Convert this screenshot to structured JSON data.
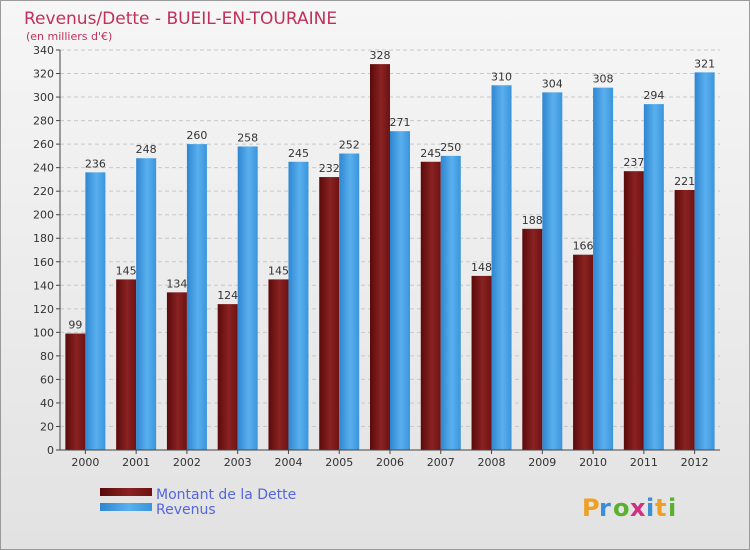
{
  "chart_data": {
    "type": "bar",
    "title": "Revenus/Dette - BUEIL-EN-TOURAINE",
    "subtitle": "(en milliers d'€)",
    "categories": [
      "2000",
      "2001",
      "2002",
      "2003",
      "2004",
      "2005",
      "2006",
      "2007",
      "2008",
      "2009",
      "2010",
      "2011",
      "2012"
    ],
    "series": [
      {
        "name": "Montant de la Dette",
        "color": "#7a1414",
        "values": [
          99,
          145,
          134,
          124,
          145,
          232,
          328,
          245,
          148,
          188,
          166,
          237,
          221
        ]
      },
      {
        "name": "Revenus",
        "color": "#3f9ae0",
        "values": [
          236,
          248,
          260,
          258,
          245,
          252,
          271,
          250,
          310,
          304,
          308,
          294,
          321
        ]
      }
    ],
    "ylim": [
      0,
      340
    ],
    "yticks": [
      0,
      20,
      40,
      60,
      80,
      100,
      120,
      140,
      160,
      180,
      200,
      220,
      240,
      260,
      280,
      300,
      320,
      340
    ],
    "grid": true,
    "legend_position": "bottom-left"
  },
  "logo": {
    "text": "Proxiti",
    "icon": "proxiti-logo"
  }
}
